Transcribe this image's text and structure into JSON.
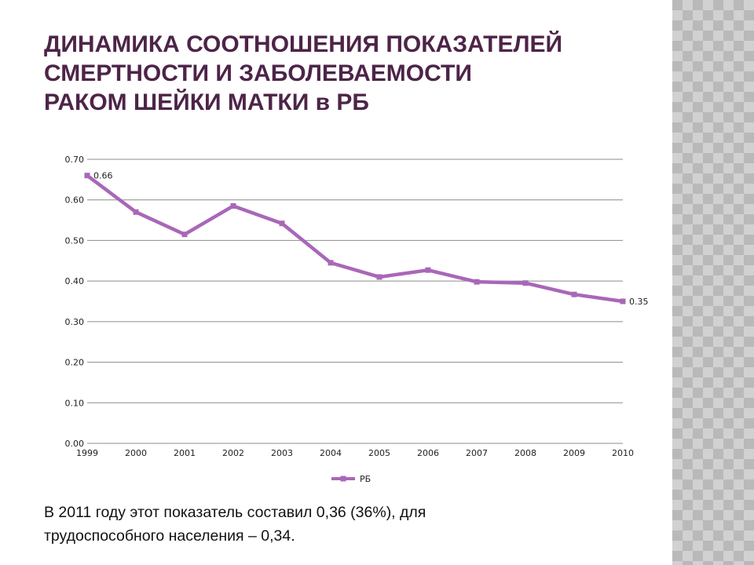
{
  "slide": {
    "title_lines": [
      "ДИНАМИКА СООТНОШЕНИЯ ПОКАЗАТЕЛЕЙ",
      "СМЕРТНОСТИ И ЗАБОЛЕВАЕМОСТИ",
      "РАКОМ ШЕЙКИ МАТКИ в РБ"
    ],
    "note_lines": [
      "В 2011 году этот показатель составил 0,36 (36%), для",
      "трудоспособного населения – 0,34."
    ]
  },
  "colors": {
    "title": "#4d2448",
    "series": "#a967b8",
    "grid": "#8c8c8c",
    "side_pattern": "#b9b9b9"
  },
  "chart_data": {
    "type": "line",
    "categories": [
      "1999",
      "2000",
      "2001",
      "2002",
      "2003",
      "2004",
      "2005",
      "2006",
      "2007",
      "2008",
      "2009",
      "2010"
    ],
    "series": [
      {
        "name": "РБ",
        "values": [
          0.66,
          0.57,
          0.515,
          0.585,
          0.542,
          0.445,
          0.41,
          0.427,
          0.398,
          0.395,
          0.367,
          0.35
        ]
      }
    ],
    "data_labels": [
      {
        "index": 0,
        "text": "0.66"
      },
      {
        "index": 11,
        "text": "0.35"
      }
    ],
    "y_ticks": [
      "0.00",
      "0.10",
      "0.20",
      "0.30",
      "0.40",
      "0.50",
      "0.60",
      "0.70"
    ],
    "ylim": [
      0,
      0.7
    ],
    "grid": true,
    "legend_position": "bottom"
  }
}
